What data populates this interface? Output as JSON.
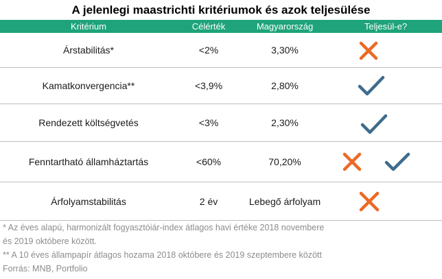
{
  "title": "A jelenlegi maastrichti kritériumok és azok teljesülése",
  "header": {
    "col1": "Kritérium",
    "col2": "Célérték",
    "col3": "Magyarország",
    "col4": "Teljesül-e?"
  },
  "rows": [
    {
      "criterion": "Árstabilitás*",
      "target": "<2%",
      "hungary": "3,30%",
      "status": [
        "cross"
      ]
    },
    {
      "criterion": "Kamatkonvergencia**",
      "target": "<3,9%",
      "hungary": "2,80%",
      "status": [
        "check"
      ]
    },
    {
      "criterion": "Rendezett költségvetés",
      "target": "<3%",
      "hungary": "2,30%",
      "status": [
        "check"
      ]
    },
    {
      "criterion": "Fenntartható államháztartás",
      "target": "<60%",
      "hungary": "70,20%",
      "status": [
        "cross",
        "check"
      ]
    },
    {
      "criterion": "Árfolyamstabilitás",
      "target": "2 év",
      "hungary": "Lebegő árfolyam",
      "status": [
        "cross"
      ]
    }
  ],
  "footnotes": {
    "note1_line1": "*  Az éves alapú, harmonizált fogyasztóiár-index átlagos havi értéke 2018 novembere",
    "note1_line2": "és 2019 októbere között.",
    "note2": "** A 10 éves állampapír átlagos hozama 2018 októbere és 2019 szeptembere között",
    "source": "Forrás: MNB, Portfolio"
  },
  "colors": {
    "header_bg": "#1fa37a",
    "cross": "#ec6a24",
    "check": "#3f6b8c"
  }
}
